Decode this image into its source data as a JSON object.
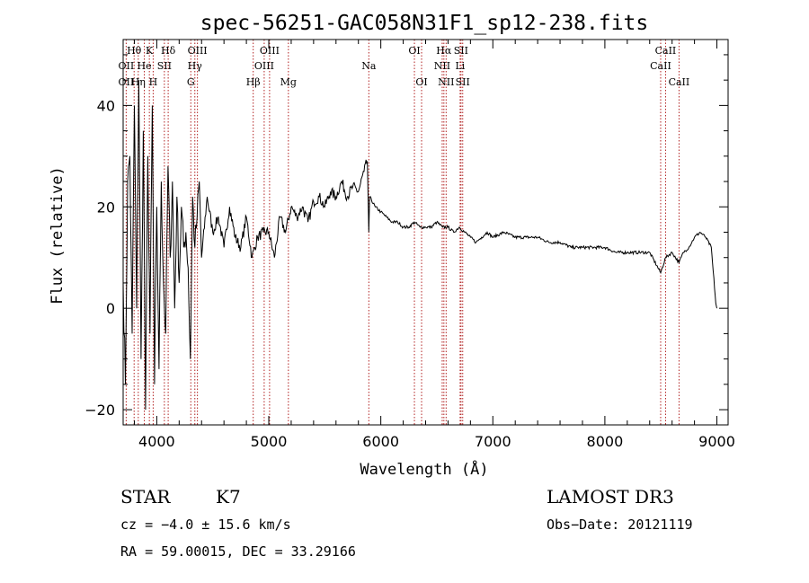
{
  "chart_data": {
    "type": "line",
    "title": "spec-56251-GAC058N31F1_sp12-238.fits",
    "xlabel": "Wavelength (Å)",
    "ylabel": "Flux (relative)",
    "xlim": [
      3700,
      9100
    ],
    "ylim": [
      -23,
      53
    ],
    "xticks": [
      4000,
      5000,
      6000,
      7000,
      8000,
      9000
    ],
    "yticks": [
      -20,
      0,
      20,
      40
    ],
    "series": [
      {
        "name": "spectrum",
        "x": [
          3700,
          3720,
          3740,
          3760,
          3780,
          3800,
          3820,
          3840,
          3860,
          3880,
          3900,
          3920,
          3940,
          3960,
          3980,
          4000,
          4020,
          4040,
          4060,
          4080,
          4100,
          4120,
          4140,
          4160,
          4180,
          4200,
          4220,
          4240,
          4260,
          4280,
          4300,
          4320,
          4340,
          4360,
          4380,
          4400,
          4450,
          4500,
          4550,
          4600,
          4650,
          4700,
          4750,
          4800,
          4850,
          4900,
          4950,
          5000,
          5050,
          5100,
          5150,
          5200,
          5250,
          5300,
          5350,
          5400,
          5450,
          5500,
          5550,
          5600,
          5650,
          5700,
          5750,
          5800,
          5850,
          5880,
          5893,
          5900,
          5950,
          6000,
          6050,
          6100,
          6150,
          6200,
          6250,
          6300,
          6350,
          6400,
          6450,
          6500,
          6550,
          6600,
          6650,
          6700,
          6750,
          6800,
          6850,
          6900,
          6950,
          7000,
          7100,
          7200,
          7300,
          7400,
          7500,
          7600,
          7700,
          7800,
          7900,
          8000,
          8100,
          8200,
          8300,
          8400,
          8498,
          8542,
          8600,
          8662,
          8700,
          8750,
          8800,
          8850,
          8900,
          8950,
          8990,
          9000
        ],
        "y": [
          5,
          -15,
          25,
          30,
          -5,
          40,
          0,
          45,
          -10,
          35,
          -20,
          30,
          -5,
          40,
          -15,
          20,
          -12,
          25,
          5,
          -5,
          28,
          10,
          25,
          0,
          22,
          5,
          20,
          12,
          15,
          8,
          -10,
          22,
          12,
          18,
          25,
          10,
          22,
          15,
          18,
          12,
          20,
          14,
          12,
          18,
          10,
          14,
          15,
          15,
          10,
          18,
          15,
          20,
          18,
          20,
          17,
          21,
          22,
          20,
          23,
          22,
          25,
          22,
          24,
          23,
          27,
          29,
          15,
          22,
          20,
          19,
          18,
          17,
          17,
          16,
          16,
          17,
          16,
          16,
          16,
          17,
          16,
          16,
          15,
          16,
          15,
          14,
          13,
          14,
          15,
          14,
          15,
          14,
          14,
          14,
          13,
          13,
          12,
          12,
          12,
          12,
          11,
          11,
          11,
          11,
          7,
          10,
          11,
          9,
          11,
          12,
          14,
          15,
          14,
          12,
          1,
          0
        ]
      }
    ],
    "spectral_lines": [
      {
        "label": "Hθ",
        "wl": 3798,
        "row": 1
      },
      {
        "label": "OII",
        "wl": 3727,
        "row": 2
      },
      {
        "label": "OII",
        "wl": 3727,
        "row": 3
      },
      {
        "label": "K",
        "wl": 3934,
        "row": 1
      },
      {
        "label": "He",
        "wl": 3889,
        "row": 2
      },
      {
        "label": "Hη",
        "wl": 3835,
        "row": 3
      },
      {
        "label": "SII",
        "wl": 4068,
        "row": 2
      },
      {
        "label": "H",
        "wl": 3968,
        "row": 3
      },
      {
        "label": "Hδ",
        "wl": 4102,
        "row": 1
      },
      {
        "label": "OIII",
        "wl": 4363,
        "row": 1
      },
      {
        "label": "Hγ",
        "wl": 4340,
        "row": 2
      },
      {
        "label": "G",
        "wl": 4304,
        "row": 3
      },
      {
        "label": "Hβ",
        "wl": 4861,
        "row": 3
      },
      {
        "label": "OIII",
        "wl": 5007,
        "row": 1
      },
      {
        "label": "OIII",
        "wl": 4959,
        "row": 2
      },
      {
        "label": "Mg",
        "wl": 5175,
        "row": 3
      },
      {
        "label": "Na",
        "wl": 5893,
        "row": 2
      },
      {
        "label": "OI",
        "wl": 6300,
        "row": 1
      },
      {
        "label": "OI",
        "wl": 6364,
        "row": 3
      },
      {
        "label": "Hα",
        "wl": 6563,
        "row": 1
      },
      {
        "label": "SII",
        "wl": 6716,
        "row": 1
      },
      {
        "label": "NII",
        "wl": 6548,
        "row": 2
      },
      {
        "label": "Li",
        "wl": 6708,
        "row": 2
      },
      {
        "label": "NII",
        "wl": 6583,
        "row": 3
      },
      {
        "label": "SII",
        "wl": 6731,
        "row": 3
      },
      {
        "label": "CaII",
        "wl": 8542,
        "row": 1
      },
      {
        "label": "CaII",
        "wl": 8498,
        "row": 2
      },
      {
        "label": "CaII",
        "wl": 8662,
        "row": 3
      }
    ]
  },
  "info": {
    "object_class": "STAR",
    "subclass": "K7",
    "survey": "LAMOST DR3",
    "cz": "cz = −4.0 ± 15.6 km/s",
    "obs_date": "Obs−Date: 20121119",
    "coords": "RA =  59.00015, DEC =  33.29166"
  },
  "colors": {
    "line_marker": "#b22222",
    "spectrum": "#000000",
    "axes": "#000000"
  }
}
